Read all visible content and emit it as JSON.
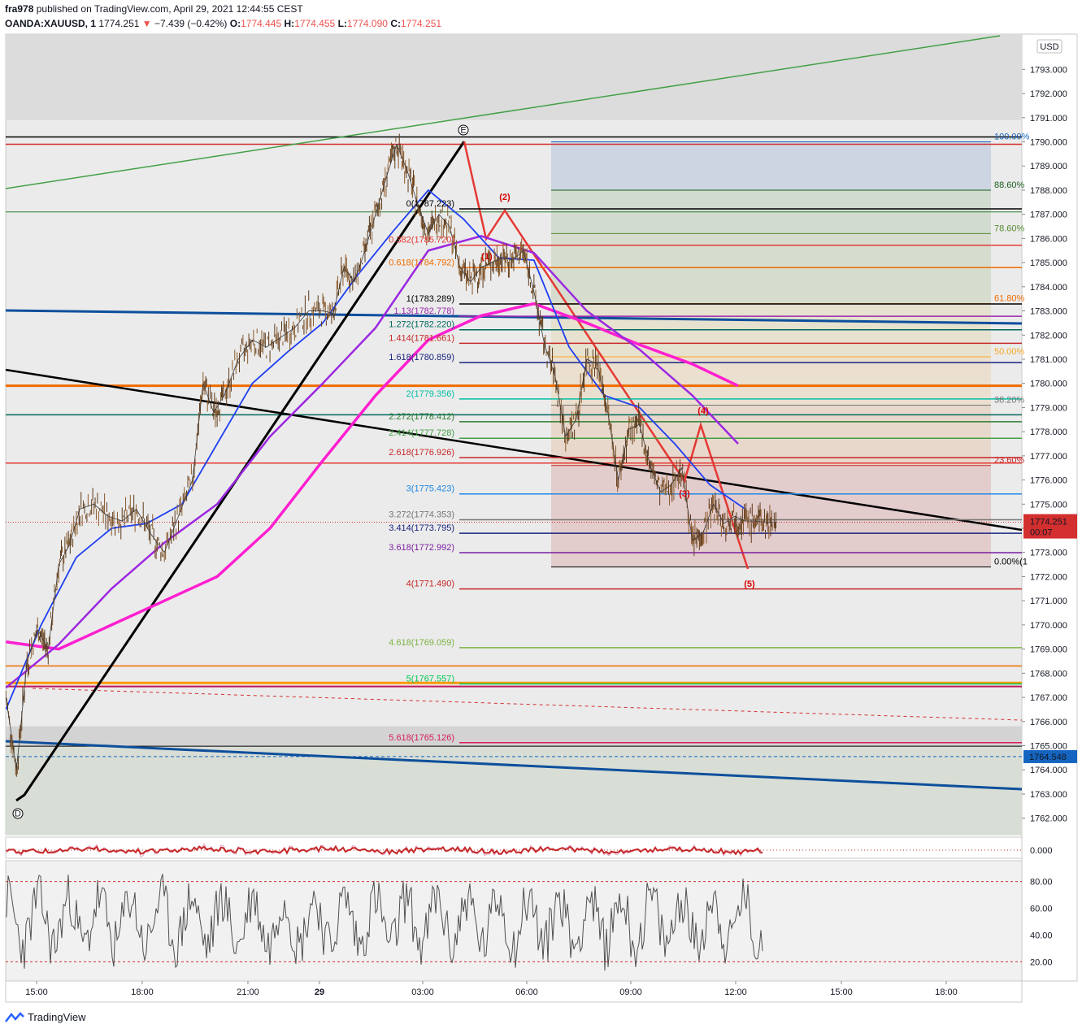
{
  "header": {
    "author": "fra978",
    "published_text": "published on TradingView.com, April 29, 2021 12:44:55 CEST",
    "symbol": "OANDA:XAUUSD, 1",
    "last_price": "1774.251",
    "change": "−7.439 (−0.42%)",
    "open_label": "O:",
    "open": "1774.445",
    "high_label": "H:",
    "high": "1774.455",
    "low_label": "L:",
    "low": "1774.090",
    "close_label": "C:",
    "close": "1774.251"
  },
  "footer": {
    "brand": "TradingView"
  },
  "colors": {
    "up": "#26a69a",
    "down": "#ef5350",
    "candle": "#5d3a1a",
    "ema_fast": "#1f3ff2",
    "ema_mid": "#9c27e0",
    "ema_slow": "#ff1fd0",
    "trend_blue": "#0d4f9c",
    "price_tag": "#d32f2f",
    "blue_tag": "#1565c0"
  },
  "chart_data": [
    {
      "type": "line",
      "title": "",
      "currency": "USD",
      "x_ticks": [
        "15:00",
        "18:00",
        "21:00",
        "29",
        "03:00",
        "06:00",
        "09:00",
        "12:00",
        "15:00",
        "18:00"
      ],
      "y_ticks": [
        1762,
        1763,
        1764,
        1765,
        1766,
        1767,
        1768,
        1769,
        1770,
        1771,
        1772,
        1773,
        1774,
        1775,
        1776,
        1777,
        1778,
        1779,
        1780,
        1781,
        1782,
        1783,
        1784,
        1785,
        1786,
        1787,
        1788,
        1789,
        1790,
        1791,
        1792,
        1793
      ],
      "y_tick_labels": [
        "1762.000",
        "1763.000",
        "1764.000",
        "1765.000",
        "1766.000",
        "1767.000",
        "1768.000",
        "1769.000",
        "1770.000",
        "1771.000",
        "1772.000",
        "1773.000",
        "1774.000",
        "1775.000",
        "1776.000",
        "1777.000",
        "1778.000",
        "1779.000",
        "1780.000",
        "1781.000",
        "1782.000",
        "1783.000",
        "1784.000",
        "1785.000",
        "1786.000",
        "1787.000",
        "1788.000",
        "1789.000",
        "1790.000",
        "1791.000",
        "1792.000",
        "1793.000"
      ],
      "ylim": [
        1761.3,
        1794.4
      ],
      "last_price_tag": "1774.251",
      "countdown": "00:07",
      "blue_price_tag": "1764.548",
      "series": [
        {
          "x_hours": [
            0.0,
            0.3,
            0.6,
            0.9,
            1.2,
            1.5,
            1.8,
            2.1,
            2.5,
            2.9,
            3.3,
            3.7,
            4.1,
            4.5,
            4.9,
            5.3,
            5.6,
            5.9,
            6.2,
            6.6,
            7.0,
            7.4,
            7.8,
            8.2,
            8.6,
            9.0,
            9.3,
            9.6,
            9.9,
            10.2,
            10.5,
            10.8,
            11.1,
            11.4,
            11.7,
            12.0,
            12.3,
            12.6,
            12.9,
            13.2,
            13.5,
            13.8,
            14.1,
            14.4,
            14.7,
            15.0,
            15.3,
            15.6,
            15.9,
            16.2,
            16.5,
            16.8,
            17.1,
            17.4,
            17.7,
            18.0,
            18.3,
            18.6,
            18.9,
            19.2,
            19.5,
            19.8,
            20.1,
            20.4,
            20.7,
            21.0,
            21.3,
            21.6,
            21.9
          ],
          "values": [
            1767.0,
            1764.0,
            1768.5,
            1769.8,
            1769.0,
            1772.5,
            1773.3,
            1774.8,
            1775.0,
            1774.5,
            1774.3,
            1774.8,
            1773.8,
            1773.0,
            1774.5,
            1776.0,
            1780.0,
            1778.8,
            1779.5,
            1781.0,
            1781.8,
            1781.5,
            1781.9,
            1782.3,
            1783.0,
            1783.0,
            1782.9,
            1784.8,
            1784.2,
            1785.5,
            1787.0,
            1788.5,
            1789.9,
            1788.8,
            1787.4,
            1786.2,
            1787.0,
            1786.5,
            1784.8,
            1784.2,
            1784.8,
            1785.0,
            1785.2,
            1785.1,
            1785.5,
            1783.8,
            1781.6,
            1780.3,
            1777.8,
            1778.5,
            1781.0,
            1780.8,
            1778.8,
            1776.0,
            1778.1,
            1778.3,
            1776.6,
            1775.5,
            1775.8,
            1776.5,
            1773.5,
            1773.8,
            1775.0,
            1774.2,
            1774.5,
            1774.3,
            1774.3,
            1774.25,
            1774.25
          ]
        },
        {
          "name_hidden": true,
          "x_hours": [
            0.0,
            1.0,
            2.0,
            3.0,
            4.0,
            5.0,
            6.0,
            7.0,
            8.0,
            9.0,
            10.0,
            11.0,
            12.0,
            13.0,
            14.0,
            15.0,
            16.0,
            17.0,
            18.0,
            19.0,
            20.0,
            21.0
          ],
          "values": [
            1766.5,
            1770.0,
            1772.8,
            1774.0,
            1774.2,
            1775.0,
            1777.5,
            1780.0,
            1781.3,
            1782.5,
            1784.5,
            1786.3,
            1788.0,
            1786.8,
            1785.2,
            1785.1,
            1781.5,
            1779.5,
            1779.0,
            1777.5,
            1775.8,
            1774.8
          ]
        },
        {
          "x_hours": [
            0.0,
            1.5,
            3.0,
            4.5,
            6.0,
            7.5,
            9.0,
            10.5,
            12.0,
            13.5,
            15.0,
            16.5,
            18.0,
            19.5,
            20.8
          ],
          "values": [
            1767.4,
            1769.2,
            1771.5,
            1773.4,
            1775.0,
            1777.8,
            1780.0,
            1782.3,
            1785.5,
            1786.1,
            1785.4,
            1783.0,
            1781.4,
            1779.5,
            1777.5
          ]
        },
        {
          "x_hours": [
            0.0,
            1.5,
            3.0,
            4.5,
            6.0,
            7.5,
            9.0,
            10.5,
            12.0,
            13.5,
            15.0,
            16.5,
            18.0,
            19.5,
            20.8
          ],
          "values": [
            1769.3,
            1769.0,
            1770.0,
            1771.0,
            1772.0,
            1774.0,
            1776.8,
            1779.5,
            1781.8,
            1782.8,
            1783.3,
            1782.5,
            1781.6,
            1780.8,
            1779.9
          ]
        }
      ],
      "fib_extension_labels": [
        "0(1787.223)",
        "0.382(1785.720)",
        "0.618(1784.792)",
        "1(1783.289)",
        "1.13(1782.778)",
        "1.272(1782.220)",
        "1.414(1781.661)",
        "1.618(1780.859)",
        "2(1779.356)",
        "2.272(1778.412)",
        "2.414(1777.728)",
        "2.618(1776.926)",
        "3(1775.423)",
        "3.272(1774.353)",
        "3.414(1773.795)",
        "3.618(1772.992)",
        "4(1771.490)",
        "4.618(1769.059)",
        "5(1767.557)",
        "5.618(1765.126)"
      ],
      "fib_extension_prices": [
        1787.223,
        1785.72,
        1784.792,
        1783.289,
        1782.778,
        1782.22,
        1781.661,
        1780.859,
        1779.356,
        1778.412,
        1777.728,
        1776.926,
        1775.423,
        1774.353,
        1773.795,
        1772.992,
        1771.49,
        1769.059,
        1767.557,
        1765.126
      ],
      "fib_extension_colors": [
        "#000000",
        "#e53935",
        "#ef6c00",
        "#000000",
        "#9c27b0",
        "#00695c",
        "#c62828",
        "#1a237e",
        "#00bfa5",
        "#2e7d32",
        "#43a047",
        "#c62828",
        "#1e88e5",
        "#757575",
        "#1a237e",
        "#7b1fa2",
        "#c62828",
        "#7cb342",
        "#00c853",
        "#d81b60"
      ],
      "fib_retracement_labels": [
        "100.00%",
        "88.60%",
        "78.60%",
        "61.80%",
        "50.00%",
        "38.20%",
        "23.60%",
        "0.00%(1"
      ],
      "fib_retracement_prices": [
        1790.0,
        1788.0,
        1786.2,
        1783.3,
        1781.1,
        1779.1,
        1776.6,
        1772.4
      ],
      "fib_retracement_colors": [
        "#1565c0",
        "#1b5e20",
        "#558b2f",
        "#ef6c00",
        "#f9a825",
        "#757575",
        "#c62828",
        "#000000"
      ],
      "wave_labels": [
        "E",
        "D",
        "(1)",
        "(2)",
        "(3)",
        "(4)",
        "(5)"
      ],
      "osc1_ticks": [
        "0.000"
      ],
      "osc2_ticks": [
        "80.00",
        "60.00",
        "40.00",
        "20.00"
      ],
      "osc2_ylim": [
        5,
        95
      ]
    }
  ]
}
